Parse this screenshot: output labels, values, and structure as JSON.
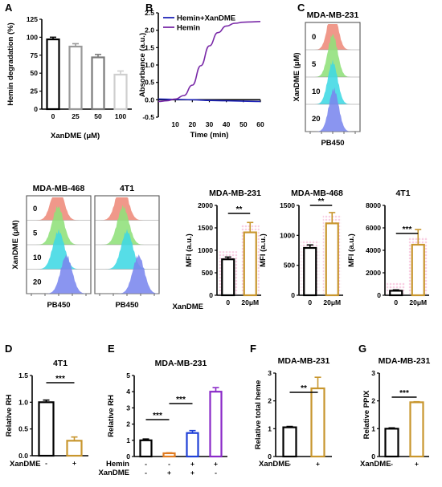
{
  "chart_data": [
    {
      "id": "A",
      "type": "bar",
      "panel_label": "A",
      "categories": [
        "0",
        "25",
        "50",
        "100"
      ],
      "values": [
        97,
        87,
        72,
        48
      ],
      "errors": [
        3,
        4,
        4,
        5
      ],
      "colors": [
        "#000000",
        "#9a9a9a",
        "#7a7a7a",
        "#cfcfcf"
      ],
      "ylabel": "Hemin degradation (%)",
      "xlabel": "XanDME (μM)",
      "ylim": [
        0,
        125
      ],
      "yticks": [
        0,
        25,
        50,
        75,
        100,
        125
      ]
    },
    {
      "id": "B",
      "type": "line",
      "panel_label": "B",
      "xlabel": "Time (min)",
      "ylabel": "Absorbance (a.u.)",
      "xlim": [
        0,
        60
      ],
      "ylim": [
        -0.5,
        2.5
      ],
      "xticks": [
        10,
        20,
        30,
        40,
        50,
        60
      ],
      "yticks": [
        -0.5,
        0.0,
        0.5,
        1.0,
        1.5,
        2.0,
        2.5
      ],
      "legend": "top-left",
      "series": [
        {
          "name": "Hemin+XanDME",
          "color": "#1f24b8",
          "x": [
            0,
            10,
            20,
            30,
            40,
            50,
            60
          ],
          "y": [
            0.02,
            0.01,
            0.0,
            -0.02,
            -0.03,
            -0.04,
            -0.05
          ]
        },
        {
          "name": "Hemin",
          "color": "#7a2aa8",
          "x": [
            0,
            5,
            10,
            15,
            20,
            25,
            30,
            35,
            40,
            45,
            50,
            55,
            60
          ],
          "y": [
            -0.05,
            -0.03,
            0.02,
            0.12,
            0.42,
            0.98,
            1.55,
            1.93,
            2.12,
            2.2,
            2.23,
            2.24,
            2.25
          ]
        }
      ]
    },
    {
      "id": "C1",
      "type": "histogram",
      "panel_label": "C",
      "title": "MDA-MB-231",
      "ylabel": "XanDME (μM)",
      "xlabel": "PB450",
      "rows": [
        {
          "label": "0",
          "color": "#ee8a7a"
        },
        {
          "label": "5",
          "color": "#8fe07a"
        },
        {
          "label": "10",
          "color": "#3fd8e4"
        },
        {
          "label": "20",
          "color": "#7a86ee"
        }
      ],
      "peaks": [
        0.5,
        0.5,
        0.5,
        0.52
      ]
    },
    {
      "id": "C2",
      "type": "histogram",
      "title": "MDA-MB-468",
      "ylabel": "XanDME (μM)",
      "xlabel": "PB450",
      "rows": [
        {
          "label": "0",
          "color": "#ee8a7a"
        },
        {
          "label": "5",
          "color": "#8fe07a"
        },
        {
          "label": "10",
          "color": "#3fd8e4"
        },
        {
          "label": "20",
          "color": "#7a86ee"
        }
      ],
      "peaks": [
        0.48,
        0.49,
        0.5,
        0.62
      ]
    },
    {
      "id": "C3",
      "type": "histogram",
      "title": "4T1",
      "xlabel": "PB450",
      "rows": [
        {
          "label": "0",
          "color": "#ee8a7a"
        },
        {
          "label": "5",
          "color": "#8fe07a"
        },
        {
          "label": "10",
          "color": "#3fd8e4"
        },
        {
          "label": "20",
          "color": "#7a86ee"
        }
      ],
      "peaks": [
        0.42,
        0.44,
        0.5,
        0.68
      ]
    },
    {
      "id": "M1",
      "type": "bar",
      "title": "MDA-MB-231",
      "categories": [
        "0",
        "20μM"
      ],
      "xlabel": "XanDME",
      "values": [
        800,
        1400
      ],
      "errors": [
        50,
        220
      ],
      "colors": [
        "#000000",
        "#c8962e"
      ],
      "ylabel": "MFI (a.u.)",
      "ylim": [
        0,
        2000
      ],
      "yticks": [
        0,
        500,
        1000,
        1500,
        2000
      ],
      "significance": "**"
    },
    {
      "id": "M2",
      "type": "bar",
      "title": "MDA-MB-468",
      "categories": [
        "0",
        "20μM"
      ],
      "xlabel": "XanDME",
      "values": [
        790,
        1200
      ],
      "errors": [
        50,
        180
      ],
      "colors": [
        "#000000",
        "#c8962e"
      ],
      "ylabel": "MFI (a.u.)",
      "ylim": [
        0,
        1500
      ],
      "yticks": [
        0,
        500,
        1000,
        1500
      ],
      "significance": "**"
    },
    {
      "id": "M3",
      "type": "bar",
      "title": "4T1",
      "categories": [
        "0",
        "20μM"
      ],
      "xlabel": "XanDME",
      "values": [
        400,
        4500
      ],
      "errors": [
        80,
        1350
      ],
      "colors": [
        "#000000",
        "#c8962e"
      ],
      "ylabel": "MFI (a.u.)",
      "ylim": [
        0,
        8000
      ],
      "yticks": [
        0,
        2000,
        4000,
        6000,
        8000
      ],
      "significance": "***"
    },
    {
      "id": "D",
      "type": "bar",
      "panel_label": "D",
      "title": "4T1",
      "categories": [
        "-",
        "+"
      ],
      "xlabel": "XanDME",
      "values": [
        1.0,
        0.28
      ],
      "errors": [
        0.04,
        0.07
      ],
      "colors": [
        "#000000",
        "#c8962e"
      ],
      "ylabel": "Relative RH",
      "ylim": [
        0,
        1.5
      ],
      "yticks": [
        0.0,
        0.5,
        1.0,
        1.5
      ],
      "significance": "***"
    },
    {
      "id": "E",
      "type": "bar",
      "panel_label": "E",
      "title": "MDA-MB-231",
      "categories": [
        "1",
        "2",
        "3",
        "4"
      ],
      "row_labels": [
        "Hemin",
        "XanDME"
      ],
      "row_values": [
        [
          "-",
          "-",
          "+",
          "+"
        ],
        [
          "-",
          "+",
          "+",
          "-"
        ]
      ],
      "values": [
        1.0,
        0.2,
        1.45,
        4.0
      ],
      "errors": [
        0.08,
        0.03,
        0.15,
        0.25
      ],
      "colors": [
        "#000000",
        "#e07b20",
        "#1f3fd6",
        "#8a2ac8"
      ],
      "ylabel": "Relative RH",
      "ylim": [
        0,
        5
      ],
      "yticks": [
        0,
        1,
        2,
        3,
        4,
        5
      ],
      "significance": [
        "***",
        "***"
      ]
    },
    {
      "id": "F",
      "type": "bar",
      "panel_label": "F",
      "title": "MDA-MB-231",
      "categories": [
        "-",
        "+"
      ],
      "xlabel": "XanDME",
      "values": [
        1.05,
        2.45
      ],
      "errors": [
        0.03,
        0.4
      ],
      "colors": [
        "#000000",
        "#c8962e"
      ],
      "ylabel": "Relative total heme",
      "ylim": [
        0,
        3
      ],
      "yticks": [
        0,
        1,
        2,
        3
      ],
      "significance": "**"
    },
    {
      "id": "G",
      "type": "bar",
      "panel_label": "G",
      "title": "MDA-MB-231",
      "categories": [
        "-",
        "+"
      ],
      "xlabel": "XanDME",
      "values": [
        1.0,
        1.95
      ],
      "errors": [
        0.03,
        0.02
      ],
      "colors": [
        "#000000",
        "#c8962e"
      ],
      "ylabel": "Relative PPIX",
      "ylim": [
        0,
        3
      ],
      "yticks": [
        0,
        1,
        2,
        3
      ],
      "significance": "***"
    }
  ]
}
